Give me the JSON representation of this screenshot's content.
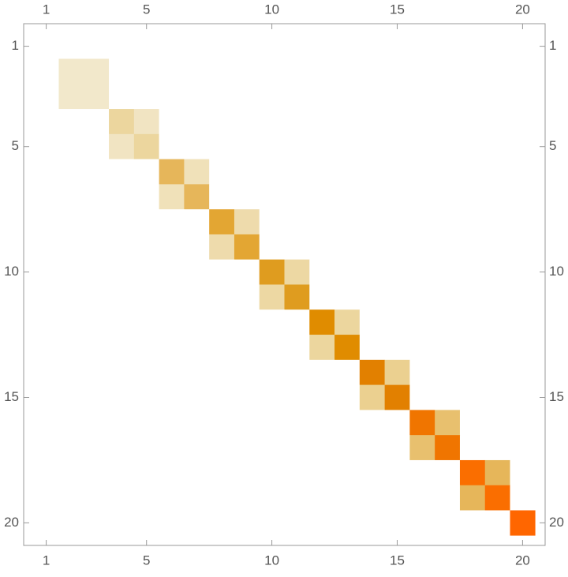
{
  "chart_data": {
    "type": "matrix",
    "values": [
      [
        0,
        0,
        0,
        0,
        0,
        0,
        0,
        0,
        0,
        0,
        0,
        0,
        0,
        0,
        0,
        0,
        0,
        0,
        0,
        0
      ],
      [
        0,
        1,
        1,
        0,
        0,
        0,
        0,
        0,
        0,
        0,
        0,
        0,
        0,
        0,
        0,
        0,
        0,
        0,
        0,
        0
      ],
      [
        0,
        1,
        1,
        0,
        0,
        0,
        0,
        0,
        0,
        0,
        0,
        0,
        0,
        0,
        0,
        0,
        0,
        0,
        0,
        0
      ],
      [
        0,
        0,
        0,
        2,
        1.2,
        0,
        0,
        0,
        0,
        0,
        0,
        0,
        0,
        0,
        0,
        0,
        0,
        0,
        0,
        0
      ],
      [
        0,
        0,
        0,
        1.2,
        2,
        0,
        0,
        0,
        0,
        0,
        0,
        0,
        0,
        0,
        0,
        0,
        0,
        0,
        0,
        0
      ],
      [
        0,
        0,
        0,
        0,
        0,
        3,
        1.4,
        0,
        0,
        0,
        0,
        0,
        0,
        0,
        0,
        0,
        0,
        0,
        0,
        0
      ],
      [
        0,
        0,
        0,
        0,
        0,
        1.4,
        3,
        0,
        0,
        0,
        0,
        0,
        0,
        0,
        0,
        0,
        0,
        0,
        0,
        0
      ],
      [
        0,
        0,
        0,
        0,
        0,
        0,
        0,
        4,
        1.7,
        0,
        0,
        0,
        0,
        0,
        0,
        0,
        0,
        0,
        0,
        0
      ],
      [
        0,
        0,
        0,
        0,
        0,
        0,
        0,
        1.7,
        4,
        0,
        0,
        0,
        0,
        0,
        0,
        0,
        0,
        0,
        0,
        0
      ],
      [
        0,
        0,
        0,
        0,
        0,
        0,
        0,
        0,
        0,
        5,
        1.9,
        0,
        0,
        0,
        0,
        0,
        0,
        0,
        0,
        0
      ],
      [
        0,
        0,
        0,
        0,
        0,
        0,
        0,
        0,
        0,
        1.9,
        5,
        0,
        0,
        0,
        0,
        0,
        0,
        0,
        0,
        0
      ],
      [
        0,
        0,
        0,
        0,
        0,
        0,
        0,
        0,
        0,
        0,
        0,
        6,
        2,
        0,
        0,
        0,
        0,
        0,
        0,
        0
      ],
      [
        0,
        0,
        0,
        0,
        0,
        0,
        0,
        0,
        0,
        0,
        0,
        2,
        6,
        0,
        0,
        0,
        0,
        0,
        0,
        0
      ],
      [
        0,
        0,
        0,
        0,
        0,
        0,
        0,
        0,
        0,
        0,
        0,
        0,
        0,
        7,
        2.2,
        0,
        0,
        0,
        0,
        0
      ],
      [
        0,
        0,
        0,
        0,
        0,
        0,
        0,
        0,
        0,
        0,
        0,
        0,
        0,
        2.2,
        7,
        0,
        0,
        0,
        0,
        0
      ],
      [
        0,
        0,
        0,
        0,
        0,
        0,
        0,
        0,
        0,
        0,
        0,
        0,
        0,
        0,
        0,
        8,
        2.7,
        0,
        0,
        0
      ],
      [
        0,
        0,
        0,
        0,
        0,
        0,
        0,
        0,
        0,
        0,
        0,
        0,
        0,
        0,
        0,
        2.7,
        8,
        0,
        0,
        0
      ],
      [
        0,
        0,
        0,
        0,
        0,
        0,
        0,
        0,
        0,
        0,
        0,
        0,
        0,
        0,
        0,
        0,
        0,
        9,
        3,
        0
      ],
      [
        0,
        0,
        0,
        0,
        0,
        0,
        0,
        0,
        0,
        0,
        0,
        0,
        0,
        0,
        0,
        0,
        0,
        3,
        9,
        0
      ],
      [
        0,
        0,
        0,
        0,
        0,
        0,
        0,
        0,
        0,
        0,
        0,
        0,
        0,
        0,
        0,
        0,
        0,
        0,
        0,
        10
      ]
    ],
    "colormap": [
      [
        0,
        "#ffffff"
      ],
      [
        1,
        "#f2e8cb"
      ],
      [
        2,
        "#ecd69e"
      ],
      [
        3,
        "#e6b65a"
      ],
      [
        4,
        "#e3a633"
      ],
      [
        5,
        "#df9c1f"
      ],
      [
        6,
        "#e08c00"
      ],
      [
        7,
        "#e28000"
      ],
      [
        8,
        "#f07500"
      ],
      [
        9,
        "#fa6e00"
      ],
      [
        10,
        "#ff6600"
      ]
    ],
    "xlim": [
      0.1,
      20.9
    ],
    "ylim": [
      0.1,
      20.9
    ],
    "xticks": [
      1,
      5,
      10,
      15,
      20
    ],
    "yticks": [
      1,
      5,
      10,
      15,
      20
    ]
  }
}
